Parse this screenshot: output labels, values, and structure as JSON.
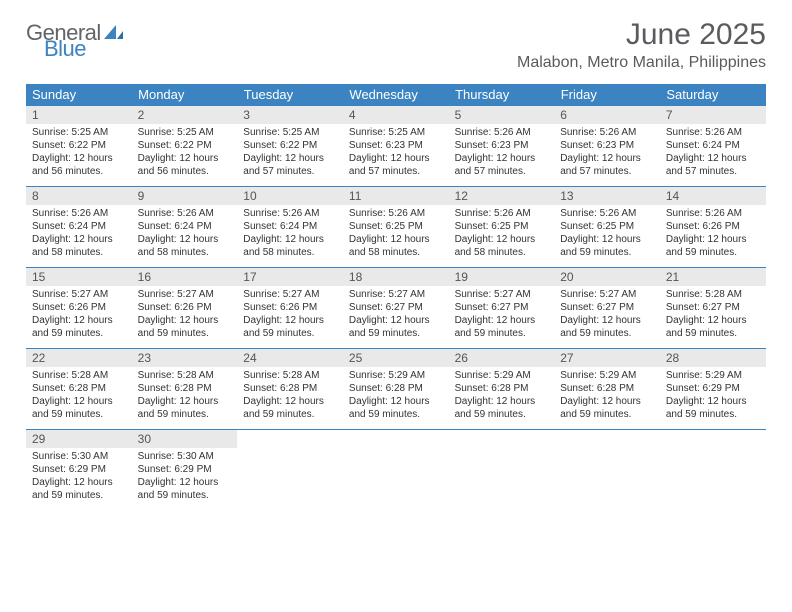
{
  "brand": {
    "word1": "General",
    "word2": "Blue",
    "grey": "#636468",
    "blue": "#3b83c1"
  },
  "title": "June 2025",
  "location": "Malabon, Metro Manila, Philippines",
  "colors": {
    "header_bg": "#3b83c1",
    "header_fg": "#ffffff",
    "daynum_bg": "#e9e9e9",
    "border": "#3b83c1",
    "text": "#333333"
  },
  "weekdays": [
    "Sunday",
    "Monday",
    "Tuesday",
    "Wednesday",
    "Thursday",
    "Friday",
    "Saturday"
  ],
  "weeks": [
    [
      {
        "n": "1",
        "sr": "Sunrise: 5:25 AM",
        "ss": "Sunset: 6:22 PM",
        "d1": "Daylight: 12 hours",
        "d2": "and 56 minutes."
      },
      {
        "n": "2",
        "sr": "Sunrise: 5:25 AM",
        "ss": "Sunset: 6:22 PM",
        "d1": "Daylight: 12 hours",
        "d2": "and 56 minutes."
      },
      {
        "n": "3",
        "sr": "Sunrise: 5:25 AM",
        "ss": "Sunset: 6:22 PM",
        "d1": "Daylight: 12 hours",
        "d2": "and 57 minutes."
      },
      {
        "n": "4",
        "sr": "Sunrise: 5:25 AM",
        "ss": "Sunset: 6:23 PM",
        "d1": "Daylight: 12 hours",
        "d2": "and 57 minutes."
      },
      {
        "n": "5",
        "sr": "Sunrise: 5:26 AM",
        "ss": "Sunset: 6:23 PM",
        "d1": "Daylight: 12 hours",
        "d2": "and 57 minutes."
      },
      {
        "n": "6",
        "sr": "Sunrise: 5:26 AM",
        "ss": "Sunset: 6:23 PM",
        "d1": "Daylight: 12 hours",
        "d2": "and 57 minutes."
      },
      {
        "n": "7",
        "sr": "Sunrise: 5:26 AM",
        "ss": "Sunset: 6:24 PM",
        "d1": "Daylight: 12 hours",
        "d2": "and 57 minutes."
      }
    ],
    [
      {
        "n": "8",
        "sr": "Sunrise: 5:26 AM",
        "ss": "Sunset: 6:24 PM",
        "d1": "Daylight: 12 hours",
        "d2": "and 58 minutes."
      },
      {
        "n": "9",
        "sr": "Sunrise: 5:26 AM",
        "ss": "Sunset: 6:24 PM",
        "d1": "Daylight: 12 hours",
        "d2": "and 58 minutes."
      },
      {
        "n": "10",
        "sr": "Sunrise: 5:26 AM",
        "ss": "Sunset: 6:24 PM",
        "d1": "Daylight: 12 hours",
        "d2": "and 58 minutes."
      },
      {
        "n": "11",
        "sr": "Sunrise: 5:26 AM",
        "ss": "Sunset: 6:25 PM",
        "d1": "Daylight: 12 hours",
        "d2": "and 58 minutes."
      },
      {
        "n": "12",
        "sr": "Sunrise: 5:26 AM",
        "ss": "Sunset: 6:25 PM",
        "d1": "Daylight: 12 hours",
        "d2": "and 58 minutes."
      },
      {
        "n": "13",
        "sr": "Sunrise: 5:26 AM",
        "ss": "Sunset: 6:25 PM",
        "d1": "Daylight: 12 hours",
        "d2": "and 59 minutes."
      },
      {
        "n": "14",
        "sr": "Sunrise: 5:26 AM",
        "ss": "Sunset: 6:26 PM",
        "d1": "Daylight: 12 hours",
        "d2": "and 59 minutes."
      }
    ],
    [
      {
        "n": "15",
        "sr": "Sunrise: 5:27 AM",
        "ss": "Sunset: 6:26 PM",
        "d1": "Daylight: 12 hours",
        "d2": "and 59 minutes."
      },
      {
        "n": "16",
        "sr": "Sunrise: 5:27 AM",
        "ss": "Sunset: 6:26 PM",
        "d1": "Daylight: 12 hours",
        "d2": "and 59 minutes."
      },
      {
        "n": "17",
        "sr": "Sunrise: 5:27 AM",
        "ss": "Sunset: 6:26 PM",
        "d1": "Daylight: 12 hours",
        "d2": "and 59 minutes."
      },
      {
        "n": "18",
        "sr": "Sunrise: 5:27 AM",
        "ss": "Sunset: 6:27 PM",
        "d1": "Daylight: 12 hours",
        "d2": "and 59 minutes."
      },
      {
        "n": "19",
        "sr": "Sunrise: 5:27 AM",
        "ss": "Sunset: 6:27 PM",
        "d1": "Daylight: 12 hours",
        "d2": "and 59 minutes."
      },
      {
        "n": "20",
        "sr": "Sunrise: 5:27 AM",
        "ss": "Sunset: 6:27 PM",
        "d1": "Daylight: 12 hours",
        "d2": "and 59 minutes."
      },
      {
        "n": "21",
        "sr": "Sunrise: 5:28 AM",
        "ss": "Sunset: 6:27 PM",
        "d1": "Daylight: 12 hours",
        "d2": "and 59 minutes."
      }
    ],
    [
      {
        "n": "22",
        "sr": "Sunrise: 5:28 AM",
        "ss": "Sunset: 6:28 PM",
        "d1": "Daylight: 12 hours",
        "d2": "and 59 minutes."
      },
      {
        "n": "23",
        "sr": "Sunrise: 5:28 AM",
        "ss": "Sunset: 6:28 PM",
        "d1": "Daylight: 12 hours",
        "d2": "and 59 minutes."
      },
      {
        "n": "24",
        "sr": "Sunrise: 5:28 AM",
        "ss": "Sunset: 6:28 PM",
        "d1": "Daylight: 12 hours",
        "d2": "and 59 minutes."
      },
      {
        "n": "25",
        "sr": "Sunrise: 5:29 AM",
        "ss": "Sunset: 6:28 PM",
        "d1": "Daylight: 12 hours",
        "d2": "and 59 minutes."
      },
      {
        "n": "26",
        "sr": "Sunrise: 5:29 AM",
        "ss": "Sunset: 6:28 PM",
        "d1": "Daylight: 12 hours",
        "d2": "and 59 minutes."
      },
      {
        "n": "27",
        "sr": "Sunrise: 5:29 AM",
        "ss": "Sunset: 6:28 PM",
        "d1": "Daylight: 12 hours",
        "d2": "and 59 minutes."
      },
      {
        "n": "28",
        "sr": "Sunrise: 5:29 AM",
        "ss": "Sunset: 6:29 PM",
        "d1": "Daylight: 12 hours",
        "d2": "and 59 minutes."
      }
    ],
    [
      {
        "n": "29",
        "sr": "Sunrise: 5:30 AM",
        "ss": "Sunset: 6:29 PM",
        "d1": "Daylight: 12 hours",
        "d2": "and 59 minutes."
      },
      {
        "n": "30",
        "sr": "Sunrise: 5:30 AM",
        "ss": "Sunset: 6:29 PM",
        "d1": "Daylight: 12 hours",
        "d2": "and 59 minutes."
      },
      {
        "empty": true
      },
      {
        "empty": true
      },
      {
        "empty": true
      },
      {
        "empty": true
      },
      {
        "empty": true
      }
    ]
  ]
}
